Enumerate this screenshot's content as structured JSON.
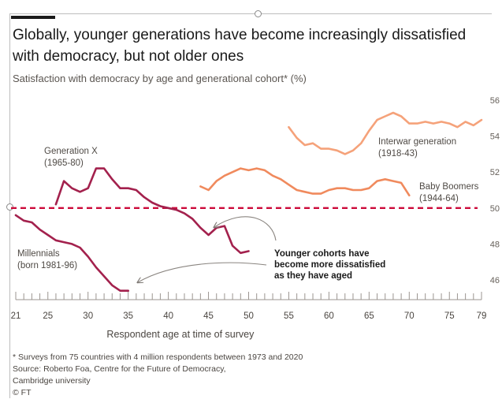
{
  "title": "Globally, younger generations have become increasingly dissatisfied with democracy, but not older ones",
  "subtitle": "Satisfaction with democracy by age and generational cohort* (%)",
  "footer": {
    "note": "* Surveys from 75 countries with 4 million respondents between 1973 and 2020",
    "source": "Source: Roberto Foa, Centre for the Future of Democracy,",
    "source2": "Cambridge university",
    "credit": "© FT"
  },
  "colors": {
    "millennials": "#a3214d",
    "genx": "#a3214d",
    "boomers": "#f08a5d",
    "interwar": "#f5a27a",
    "reference": "#cc0a3a",
    "axis": "#9b9590",
    "text": "#33302e"
  },
  "chart_data": {
    "type": "line",
    "xlabel": "Respondent age at time of survey",
    "ylabel": "",
    "xlim": [
      21,
      79
    ],
    "ylim": [
      45,
      56
    ],
    "x_ticks": [
      "21",
      "25",
      "30",
      "35",
      "40",
      "45",
      "50",
      "55",
      "60",
      "65",
      "70",
      "75",
      "79"
    ],
    "y_ticks": [
      "46",
      "48",
      "50",
      "52",
      "54",
      "56"
    ],
    "reference_line": 50,
    "annotation": [
      "Younger cohorts have",
      "become more dissatisfied",
      "as they have aged"
    ],
    "series": [
      {
        "name": "Millennials",
        "label_lines": [
          "Millennials",
          "(born 1981-96)"
        ],
        "x": [
          21,
          22,
          23,
          24,
          25,
          26,
          27,
          28,
          29,
          30,
          31,
          32,
          33,
          34,
          35
        ],
        "y": [
          49.6,
          49.3,
          49.2,
          48.8,
          48.5,
          48.2,
          48.1,
          48.0,
          47.8,
          47.3,
          46.7,
          46.2,
          45.7,
          45.4,
          45.4
        ]
      },
      {
        "name": "Generation X",
        "label_lines": [
          "Generation X",
          "(1965-80)"
        ],
        "x": [
          26,
          27,
          28,
          29,
          30,
          31,
          32,
          33,
          34,
          35,
          36,
          37,
          38,
          39,
          40,
          41,
          42,
          43,
          44,
          45,
          46,
          47,
          48,
          49,
          50
        ],
        "y": [
          50.2,
          51.5,
          51.1,
          50.9,
          51.1,
          52.2,
          52.2,
          51.6,
          51.1,
          51.1,
          51.0,
          50.6,
          50.3,
          50.1,
          50.0,
          49.9,
          49.7,
          49.4,
          48.9,
          48.5,
          48.9,
          49.0,
          47.9,
          47.5,
          47.6
        ]
      },
      {
        "name": "Baby Boomers",
        "label_lines": [
          "Baby Boomers",
          "(1944-64)"
        ],
        "x": [
          44,
          45,
          46,
          47,
          48,
          49,
          50,
          51,
          52,
          53,
          54,
          55,
          56,
          57,
          58,
          59,
          60,
          61,
          62,
          63,
          64,
          65,
          66,
          67,
          68,
          69,
          70
        ],
        "y": [
          51.2,
          51.0,
          51.5,
          51.8,
          52.0,
          52.2,
          52.1,
          52.2,
          52.1,
          51.8,
          51.6,
          51.3,
          51.0,
          50.9,
          50.8,
          50.8,
          51.0,
          51.1,
          51.1,
          51.0,
          51.0,
          51.1,
          51.5,
          51.6,
          51.5,
          51.4,
          50.7
        ]
      },
      {
        "name": "Interwar generation",
        "label_lines": [
          "Interwar generation",
          "(1918-43)"
        ],
        "x": [
          55,
          56,
          57,
          58,
          59,
          60,
          61,
          62,
          63,
          64,
          65,
          66,
          67,
          68,
          69,
          70,
          71,
          72,
          73,
          74,
          75,
          76,
          77,
          78,
          79
        ],
        "y": [
          54.5,
          53.9,
          53.5,
          53.6,
          53.3,
          53.3,
          53.2,
          53.0,
          53.2,
          53.6,
          54.3,
          54.9,
          55.1,
          55.3,
          55.1,
          54.7,
          54.7,
          54.8,
          54.7,
          54.8,
          54.7,
          54.5,
          54.8,
          54.6,
          54.9
        ]
      }
    ]
  }
}
